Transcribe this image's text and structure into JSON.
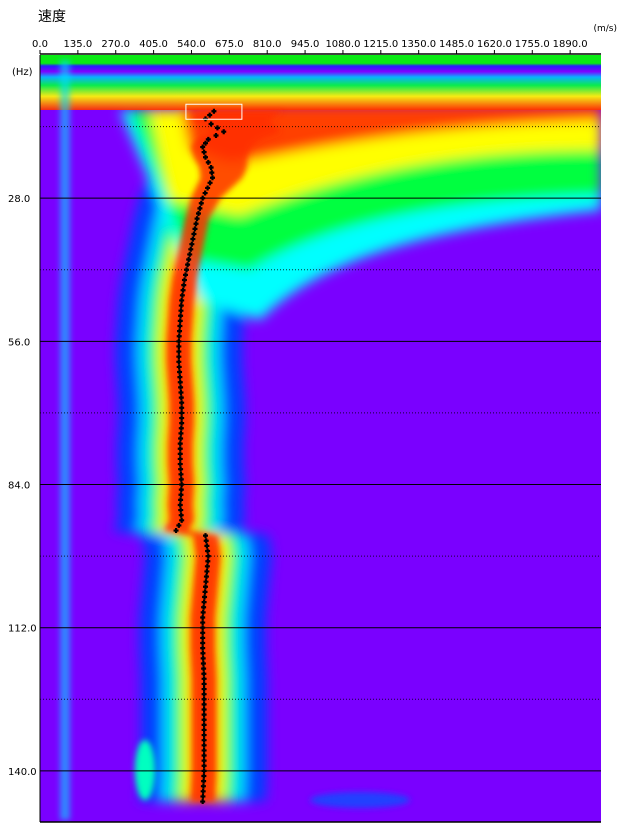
{
  "chart_data": {
    "type": "heatmap",
    "title": "速度",
    "x_unit": "(m/s)",
    "y_unit": "(Hz)",
    "xlim": [
      0,
      2000
    ],
    "ylim": [
      0,
      150
    ],
    "x_ticks": [
      "0.0",
      "135.0",
      "270.0",
      "405.0",
      "540.0",
      "675.0",
      "810.0",
      "945.0",
      "1080.0",
      "1215.0",
      "1350.0",
      "1485.0",
      "1620.0",
      "1755.0",
      "1890.0"
    ],
    "x_tick_values": [
      0,
      135,
      270,
      405,
      540,
      675,
      810,
      945,
      1080,
      1215,
      1350,
      1485,
      1620,
      1755,
      1890
    ],
    "y_ticks": [
      "28.0",
      "56.0",
      "84.0",
      "112.0",
      "140.0"
    ],
    "y_tick_values": [
      28,
      56,
      84,
      112,
      140
    ],
    "colormap": [
      "#7a00ff",
      "#0000ff",
      "#00ffff",
      "#00ff00",
      "#ffff00",
      "#ff8000",
      "#ff2000"
    ],
    "dispersion_picks": [
      {
        "f": 11,
        "v": 620
      },
      {
        "f": 12.5,
        "v": 590
      },
      {
        "f": 13.5,
        "v": 610
      },
      {
        "f": 15,
        "v": 655
      },
      {
        "f": 16.5,
        "v": 600
      },
      {
        "f": 18,
        "v": 580
      },
      {
        "f": 20,
        "v": 590
      },
      {
        "f": 22,
        "v": 610
      },
      {
        "f": 24,
        "v": 615
      },
      {
        "f": 28,
        "v": 580
      },
      {
        "f": 32,
        "v": 560
      },
      {
        "f": 36,
        "v": 545
      },
      {
        "f": 40,
        "v": 530
      },
      {
        "f": 44,
        "v": 515
      },
      {
        "f": 48,
        "v": 505
      },
      {
        "f": 52,
        "v": 500
      },
      {
        "f": 56,
        "v": 495
      },
      {
        "f": 60,
        "v": 495
      },
      {
        "f": 64,
        "v": 500
      },
      {
        "f": 68,
        "v": 505
      },
      {
        "f": 72,
        "v": 505
      },
      {
        "f": 76,
        "v": 500
      },
      {
        "f": 80,
        "v": 500
      },
      {
        "f": 84,
        "v": 505
      },
      {
        "f": 88,
        "v": 500
      },
      {
        "f": 91,
        "v": 505
      },
      {
        "f": 93,
        "v": 485
      },
      {
        "f": 94,
        "v": 590
      },
      {
        "f": 98,
        "v": 600
      },
      {
        "f": 104,
        "v": 590
      },
      {
        "f": 110,
        "v": 580
      },
      {
        "f": 116,
        "v": 580
      },
      {
        "f": 122,
        "v": 585
      },
      {
        "f": 128,
        "v": 585
      },
      {
        "f": 134,
        "v": 585
      },
      {
        "f": 140,
        "v": 585
      },
      {
        "f": 146,
        "v": 580
      }
    ],
    "selected_pick_marker": {
      "f": 11,
      "v": 620
    }
  }
}
